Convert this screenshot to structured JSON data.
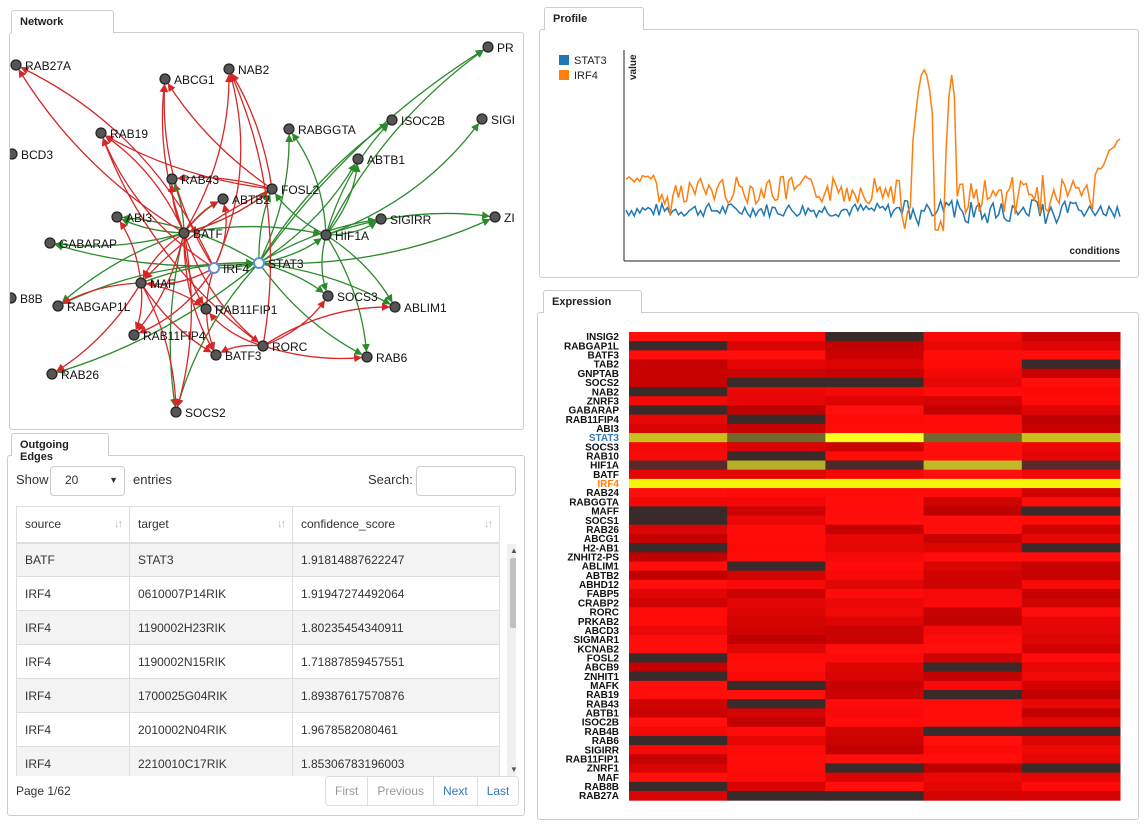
{
  "panels": {
    "network": "Network",
    "profile": "Profile",
    "outgoing": "Outgoing Edges",
    "expression": "Expression"
  },
  "network": {
    "nodes": [
      {
        "id": "RAB27A",
        "label": "RAB27A"
      },
      {
        "id": "ABCG1",
        "label": "ABCG1"
      },
      {
        "id": "NAB2",
        "label": "NAB2"
      },
      {
        "id": "PR",
        "label": "PR"
      },
      {
        "id": "RAB19",
        "label": "RAB19"
      },
      {
        "id": "RABGGTA",
        "label": "RABGGTA"
      },
      {
        "id": "ISOC2B",
        "label": "ISOC2B"
      },
      {
        "id": "SIGI",
        "label": "SIGI"
      },
      {
        "id": "BCD3",
        "label": "BCD3"
      },
      {
        "id": "ABTB1",
        "label": "ABTB1"
      },
      {
        "id": "RAB43",
        "label": "RAB43"
      },
      {
        "id": "FOSL2",
        "label": "FOSL2"
      },
      {
        "id": "ABTB2",
        "label": "ABTB2"
      },
      {
        "id": "ABI3",
        "label": "ABI3"
      },
      {
        "id": "SIGIRR",
        "label": "SIGIRR"
      },
      {
        "id": "ZI",
        "label": "ZI"
      },
      {
        "id": "BATF",
        "label": "BATF"
      },
      {
        "id": "HIF1A",
        "label": "HIF1A"
      },
      {
        "id": "GABARAP",
        "label": "GABARAP"
      },
      {
        "id": "IRF4",
        "label": "IRF4"
      },
      {
        "id": "STAT3",
        "label": "STAT3"
      },
      {
        "id": "MAF",
        "label": "MAF"
      },
      {
        "id": "B8B",
        "label": "B8B"
      },
      {
        "id": "RABGAP1L",
        "label": "RABGAP1L"
      },
      {
        "id": "RAB11FIP1",
        "label": "RAB11FIP1"
      },
      {
        "id": "SOCS3",
        "label": "SOCS3"
      },
      {
        "id": "ABLIM1",
        "label": "ABLIM1"
      },
      {
        "id": "RAB11FIP4",
        "label": "RAB11FIP4"
      },
      {
        "id": "RORC",
        "label": "RORC"
      },
      {
        "id": "BATF3",
        "label": "BATF3"
      },
      {
        "id": "RAB6",
        "label": "RAB6"
      },
      {
        "id": "RAB26",
        "label": "RAB26"
      },
      {
        "id": "SOCS2",
        "label": "SOCS2"
      }
    ]
  },
  "profile": {
    "y_label": "value",
    "x_label": "conditions",
    "legend": [
      {
        "name": "STAT3",
        "color": "#1f77b4"
      },
      {
        "name": "IRF4",
        "color": "#ff7f0e"
      }
    ]
  },
  "table": {
    "show_label": "Show",
    "page_size": "20",
    "entries_label": "entries",
    "search_label": "Search:",
    "columns": [
      "source",
      "target",
      "confidence_score"
    ],
    "rows": [
      {
        "source": "BATF",
        "target": "STAT3",
        "score": "1.91814887622247"
      },
      {
        "source": "IRF4",
        "target": "0610007P14RIK",
        "score": "1.91947274492064"
      },
      {
        "source": "IRF4",
        "target": "1190002H23RIK",
        "score": "1.80235454340911"
      },
      {
        "source": "IRF4",
        "target": "1190002N15RIK",
        "score": "1.71887859457551"
      },
      {
        "source": "IRF4",
        "target": "1700025G04RIK",
        "score": "1.89387617570876"
      },
      {
        "source": "IRF4",
        "target": "2010002N04RIK",
        "score": "1.9678582080461"
      },
      {
        "source": "IRF4",
        "target": "2210010C17RIK",
        "score": "1.85306783196003"
      }
    ],
    "page_info": "Page 1/62",
    "pager": [
      "First",
      "Previous",
      "Next",
      "Last"
    ]
  },
  "expression": {
    "genes": [
      "INSIG2",
      "RABGAP1L",
      "BATF3",
      "TAB2",
      "GNPTAB",
      "SOCS2",
      "NAB2",
      "ZNRF3",
      "GABARAP",
      "RAB11FIP4",
      "ABI3",
      "STAT3",
      "SOCS3",
      "RAB10",
      "HIF1A",
      "BATF",
      "IRF4",
      "RAB24",
      "RABGGTA",
      "MAFF",
      "SOCS1",
      "RAB26",
      "ABCG1",
      "H2-AB1",
      "ZNHIT2-PS",
      "ABLIM1",
      "ABTB2",
      "ABHD12",
      "FABP5",
      "CRABP2",
      "RORC",
      "PRKAB2",
      "ABCD3",
      "SIGMAR1",
      "KCNAB2",
      "FOSL2",
      "ABCB9",
      "ZNHIT1",
      "MAFK",
      "RAB19",
      "RAB43",
      "ABTB1",
      "ISOC2B",
      "RAB4B",
      "RAB6",
      "SIGIRR",
      "RAB11FIP1",
      "ZNRF1",
      "MAF",
      "RAB8B",
      "RAB27A"
    ],
    "highlight": {
      "STAT3": "#337ab7",
      "IRF4": "#ff7f0e"
    }
  }
}
